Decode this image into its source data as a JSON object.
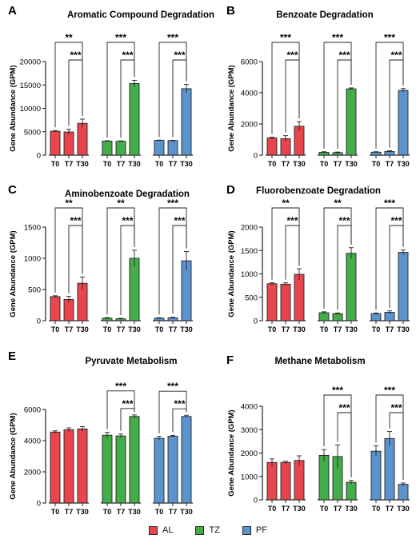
{
  "colors": {
    "AL": "#e8454f",
    "TZ": "#44ad4a",
    "PF": "#5b93cf"
  },
  "legend": [
    {
      "name": "AL",
      "color": "#e8454f"
    },
    {
      "name": "TZ",
      "color": "#44ad4a"
    },
    {
      "name": "PF",
      "color": "#5b93cf"
    }
  ],
  "chart_data": [
    {
      "panel": "A",
      "type": "bar",
      "title": "Aromatic Compound Degradation",
      "ylabel": "Gene Abundance (GPM)",
      "ylim": [
        0,
        20000
      ],
      "yticks": [
        0,
        5000,
        10000,
        15000,
        20000
      ],
      "ytick_labels": [
        "0",
        "5000",
        "10000",
        "15000",
        "20000"
      ],
      "categories": [
        "T0",
        "T7",
        "T30"
      ],
      "series": [
        {
          "name": "AL",
          "values": [
            5100,
            4950,
            6800
          ],
          "errors": [
            150,
            600,
            900
          ]
        },
        {
          "name": "TZ",
          "values": [
            3000,
            2950,
            15300
          ],
          "errors": [
            80,
            100,
            700
          ]
        },
        {
          "name": "PF",
          "values": [
            3150,
            3100,
            14200
          ],
          "errors": [
            60,
            80,
            900
          ]
        }
      ],
      "significance": [
        [
          "**",
          "***",
          "***"
        ],
        [
          "***",
          "***",
          "***"
        ]
      ]
    },
    {
      "panel": "B",
      "type": "bar",
      "title": "Benzoate Degradation",
      "ylabel": "Gene Abundance (GPM)",
      "ylim": [
        0,
        6000
      ],
      "yticks": [
        0,
        2000,
        4000,
        6000
      ],
      "ytick_labels": [
        "0",
        "2000",
        "4000",
        "6000"
      ],
      "categories": [
        "T0",
        "T7",
        "T30"
      ],
      "series": [
        {
          "name": "AL",
          "values": [
            1100,
            1050,
            1850
          ],
          "errors": [
            50,
            200,
            300
          ]
        },
        {
          "name": "TZ",
          "values": [
            180,
            160,
            4250
          ],
          "errors": [
            40,
            40,
            60
          ]
        },
        {
          "name": "PF",
          "values": [
            190,
            230,
            4150
          ],
          "errors": [
            30,
            50,
            120
          ]
        }
      ],
      "significance": [
        [
          "***",
          "***",
          "***"
        ],
        [
          "***",
          "***",
          "***"
        ]
      ]
    },
    {
      "panel": "C",
      "type": "bar",
      "title": "Aminobenzoate Degradation",
      "ylabel": "Gene Abundance (GPM)",
      "ylim": [
        0,
        1500
      ],
      "yticks": [
        0,
        500,
        1000,
        1500
      ],
      "ytick_labels": [
        "0",
        "500",
        "1000",
        "1500"
      ],
      "categories": [
        "T0",
        "T7",
        "T30"
      ],
      "series": [
        {
          "name": "AL",
          "values": [
            385,
            340,
            600
          ],
          "errors": [
            15,
            50,
            100
          ]
        },
        {
          "name": "TZ",
          "values": [
            40,
            30,
            1000
          ],
          "errors": [
            10,
            8,
            130
          ]
        },
        {
          "name": "PF",
          "values": [
            40,
            45,
            960
          ],
          "errors": [
            8,
            10,
            150
          ]
        }
      ],
      "significance": [
        [
          "**",
          "**",
          "***"
        ],
        [
          "***",
          "***",
          "***"
        ]
      ]
    },
    {
      "panel": "D",
      "type": "bar",
      "title": "Fluorobenzoate Degradation",
      "ylabel": "Gene Abundance (GPM)",
      "ylim": [
        0,
        2000
      ],
      "yticks": [
        0,
        500,
        1000,
        1500,
        2000
      ],
      "ytick_labels": [
        "0",
        "500",
        "1000",
        "1500",
        "2000"
      ],
      "categories": [
        "T0",
        "T7",
        "T30"
      ],
      "series": [
        {
          "name": "AL",
          "values": [
            790,
            780,
            990
          ],
          "errors": [
            20,
            30,
            120
          ]
        },
        {
          "name": "TZ",
          "values": [
            170,
            150,
            1440
          ],
          "errors": [
            20,
            15,
            120
          ]
        },
        {
          "name": "PF",
          "values": [
            150,
            180,
            1460
          ],
          "errors": [
            15,
            30,
            50
          ]
        }
      ],
      "significance": [
        [
          "**",
          "**",
          "***"
        ],
        [
          "***",
          "***",
          "***"
        ]
      ]
    },
    {
      "panel": "E",
      "type": "bar",
      "title": "Pyruvate Metabolism",
      "ylabel": "Gene Abundance (GPM)",
      "ylim": [
        0,
        6000
      ],
      "yticks": [
        0,
        2000,
        4000,
        6000
      ],
      "ytick_labels": [
        "0",
        "2000",
        "4000",
        "6000"
      ],
      "categories": [
        "T0",
        "T7",
        "T30"
      ],
      "series": [
        {
          "name": "AL",
          "values": [
            4550,
            4700,
            4750
          ],
          "errors": [
            80,
            120,
            150
          ]
        },
        {
          "name": "TZ",
          "values": [
            4350,
            4300,
            5550
          ],
          "errors": [
            180,
            120,
            100
          ]
        },
        {
          "name": "PF",
          "values": [
            4150,
            4280,
            5550
          ],
          "errors": [
            120,
            60,
            80
          ]
        }
      ],
      "significance": [
        null,
        [
          "***",
          "***",
          "***"
        ]
      ]
    },
    {
      "panel": "F",
      "type": "bar",
      "title": "Methane Metabolism",
      "ylabel": "Gene Abundance (GPM)",
      "ylim": [
        0,
        4000
      ],
      "yticks": [
        0,
        1000,
        2000,
        3000,
        4000
      ],
      "ytick_labels": [
        "0",
        "1000",
        "2000",
        "3000",
        "4000"
      ],
      "categories": [
        "T0",
        "T7",
        "T30"
      ],
      "series": [
        {
          "name": "AL",
          "values": [
            1600,
            1600,
            1680
          ],
          "errors": [
            150,
            50,
            200
          ]
        },
        {
          "name": "TZ",
          "values": [
            1900,
            1850,
            750
          ],
          "errors": [
            250,
            500,
            80
          ]
        },
        {
          "name": "PF",
          "values": [
            2080,
            2620,
            660
          ],
          "errors": [
            230,
            300,
            60
          ]
        }
      ],
      "significance": [
        null,
        [
          "***",
          "***",
          "***"
        ]
      ]
    }
  ]
}
